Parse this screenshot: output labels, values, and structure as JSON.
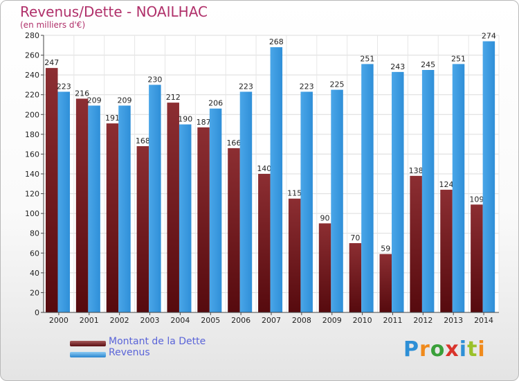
{
  "header": {
    "title": "Revenus/Dette - NOAILHAC",
    "subtitle": "(en milliers d'€)"
  },
  "legend": {
    "debt_label": "Montant de la Dette",
    "revenue_label": "Revenus"
  },
  "logo_text": "Proxiti",
  "colors": {
    "debt": "#7a1e22",
    "revenue": "#3a9be0",
    "title": "#b0306a",
    "legend_text": "#5a64d8"
  },
  "chart_data": {
    "type": "bar",
    "title": "Revenus/Dette - NOAILHAC",
    "subtitle": "(en milliers d'€)",
    "categories": [
      "2000",
      "2001",
      "2002",
      "2003",
      "2004",
      "2005",
      "2006",
      "2007",
      "2008",
      "2009",
      "2010",
      "2011",
      "2012",
      "2013",
      "2014"
    ],
    "series": [
      {
        "name": "Montant de la Dette",
        "color": "#7a1e22",
        "values": [
          247,
          216,
          191,
          168,
          212,
          187,
          166,
          140,
          115,
          90,
          70,
          59,
          138,
          124,
          109
        ]
      },
      {
        "name": "Revenus",
        "color": "#3a9be0",
        "values": [
          223,
          209,
          209,
          230,
          190,
          206,
          223,
          268,
          223,
          225,
          251,
          243,
          245,
          251,
          274
        ]
      }
    ],
    "ylim": [
      0,
      280
    ],
    "yticks": [
      0,
      20,
      40,
      60,
      80,
      100,
      120,
      140,
      160,
      180,
      200,
      220,
      240,
      260,
      280
    ],
    "grid": true,
    "legend_position": "bottom-left"
  }
}
